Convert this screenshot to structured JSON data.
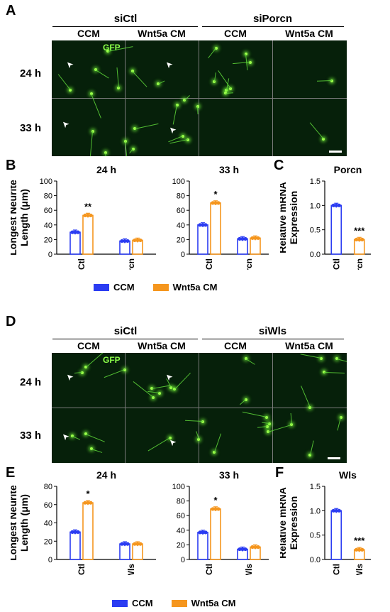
{
  "colors": {
    "ccm": "#2b3cf2",
    "wnt5a": "#f5961e",
    "siCtl_ccm_dots": "#2b3cf2"
  },
  "panels": {
    "A": {
      "letter": "A",
      "group_left": "siCtl",
      "group_right": "siPorcn",
      "cols": [
        "CCM",
        "Wnt5a CM",
        "CCM",
        "Wnt5a CM"
      ],
      "rows": [
        "24 h",
        "33 h"
      ],
      "gfp": "GFP"
    },
    "B": {
      "letter": "B"
    },
    "C": {
      "letter": "C"
    },
    "D": {
      "letter": "D",
      "group_left": "siCtl",
      "group_right": "siWls",
      "cols": [
        "CCM",
        "Wnt5a CM",
        "CCM",
        "Wnt5a CM"
      ],
      "rows": [
        "24 h",
        "33 h"
      ],
      "gfp": "GFP"
    },
    "E": {
      "letter": "E"
    },
    "F": {
      "letter": "F"
    }
  },
  "legend_top": {
    "ccm": "CCM",
    "wnt5a": "Wnt5a CM"
  },
  "legend_bottom": {
    "ccm": "CCM",
    "wnt5a": "Wnt5a CM"
  },
  "chart_data": [
    {
      "id": "B-24h",
      "type": "bar",
      "title": "24 h",
      "ylabel": "Longest Neurite Length (μm)",
      "ylim": [
        0,
        100
      ],
      "yticks": [
        0,
        20,
        40,
        60,
        80,
        100
      ],
      "categories": [
        "siCtl",
        "siPorcn"
      ],
      "series": [
        {
          "name": "CCM",
          "values": [
            30,
            18
          ]
        },
        {
          "name": "Wnt5a CM",
          "values": [
            53,
            19
          ]
        }
      ],
      "annotations": [
        {
          "category": "siCtl",
          "series": "Wnt5a CM",
          "text": "**"
        }
      ]
    },
    {
      "id": "B-33h",
      "type": "bar",
      "title": "33 h",
      "ylabel": "",
      "ylim": [
        0,
        100
      ],
      "yticks": [
        0,
        20,
        40,
        60,
        80,
        100
      ],
      "categories": [
        "siCtl",
        "siPorcn"
      ],
      "series": [
        {
          "name": "CCM",
          "values": [
            40,
            21
          ]
        },
        {
          "name": "Wnt5a CM",
          "values": [
            70,
            22
          ]
        }
      ],
      "annotations": [
        {
          "category": "siCtl",
          "series": "Wnt5a CM",
          "text": "*"
        }
      ]
    },
    {
      "id": "C",
      "type": "bar",
      "title": "Porcn",
      "ylabel": "Relative mRNA Expression",
      "ylim": [
        0,
        1.5
      ],
      "yticks": [
        0.0,
        0.5,
        1.0,
        1.5
      ],
      "categories": [
        "siCtl",
        "siPorcn"
      ],
      "series": [
        {
          "name": "",
          "values": [
            1.0,
            0.3
          ]
        }
      ],
      "annotations": [
        {
          "category": "siPorcn",
          "text": "***"
        }
      ]
    },
    {
      "id": "E-24h",
      "type": "bar",
      "title": "24 h",
      "ylabel": "Longest Neurite Length (μm)",
      "ylim": [
        0,
        80
      ],
      "yticks": [
        0,
        20,
        40,
        60,
        80
      ],
      "categories": [
        "siCtl",
        "siWls"
      ],
      "series": [
        {
          "name": "CCM",
          "values": [
            30,
            17
          ]
        },
        {
          "name": "Wnt5a CM",
          "values": [
            62,
            17
          ]
        }
      ],
      "annotations": [
        {
          "category": "siCtl",
          "series": "Wnt5a CM",
          "text": "*"
        }
      ]
    },
    {
      "id": "E-33h",
      "type": "bar",
      "title": "33 h",
      "ylabel": "",
      "ylim": [
        0,
        100
      ],
      "yticks": [
        0,
        20,
        40,
        60,
        80,
        100
      ],
      "categories": [
        "siCtl",
        "siWls"
      ],
      "series": [
        {
          "name": "CCM",
          "values": [
            37,
            14
          ]
        },
        {
          "name": "Wnt5a CM",
          "values": [
            69,
            17
          ]
        }
      ],
      "annotations": [
        {
          "category": "siCtl",
          "series": "Wnt5a CM",
          "text": "*"
        }
      ]
    },
    {
      "id": "F",
      "type": "bar",
      "title": "Wls",
      "ylabel": "Relative mRNA Expression",
      "ylim": [
        0,
        1.5
      ],
      "yticks": [
        0.0,
        0.5,
        1.0,
        1.5
      ],
      "categories": [
        "siCtl",
        "siWls"
      ],
      "series": [
        {
          "name": "",
          "values": [
            1.0,
            0.2
          ]
        }
      ],
      "annotations": [
        {
          "category": "siWls",
          "text": "***"
        }
      ]
    }
  ]
}
